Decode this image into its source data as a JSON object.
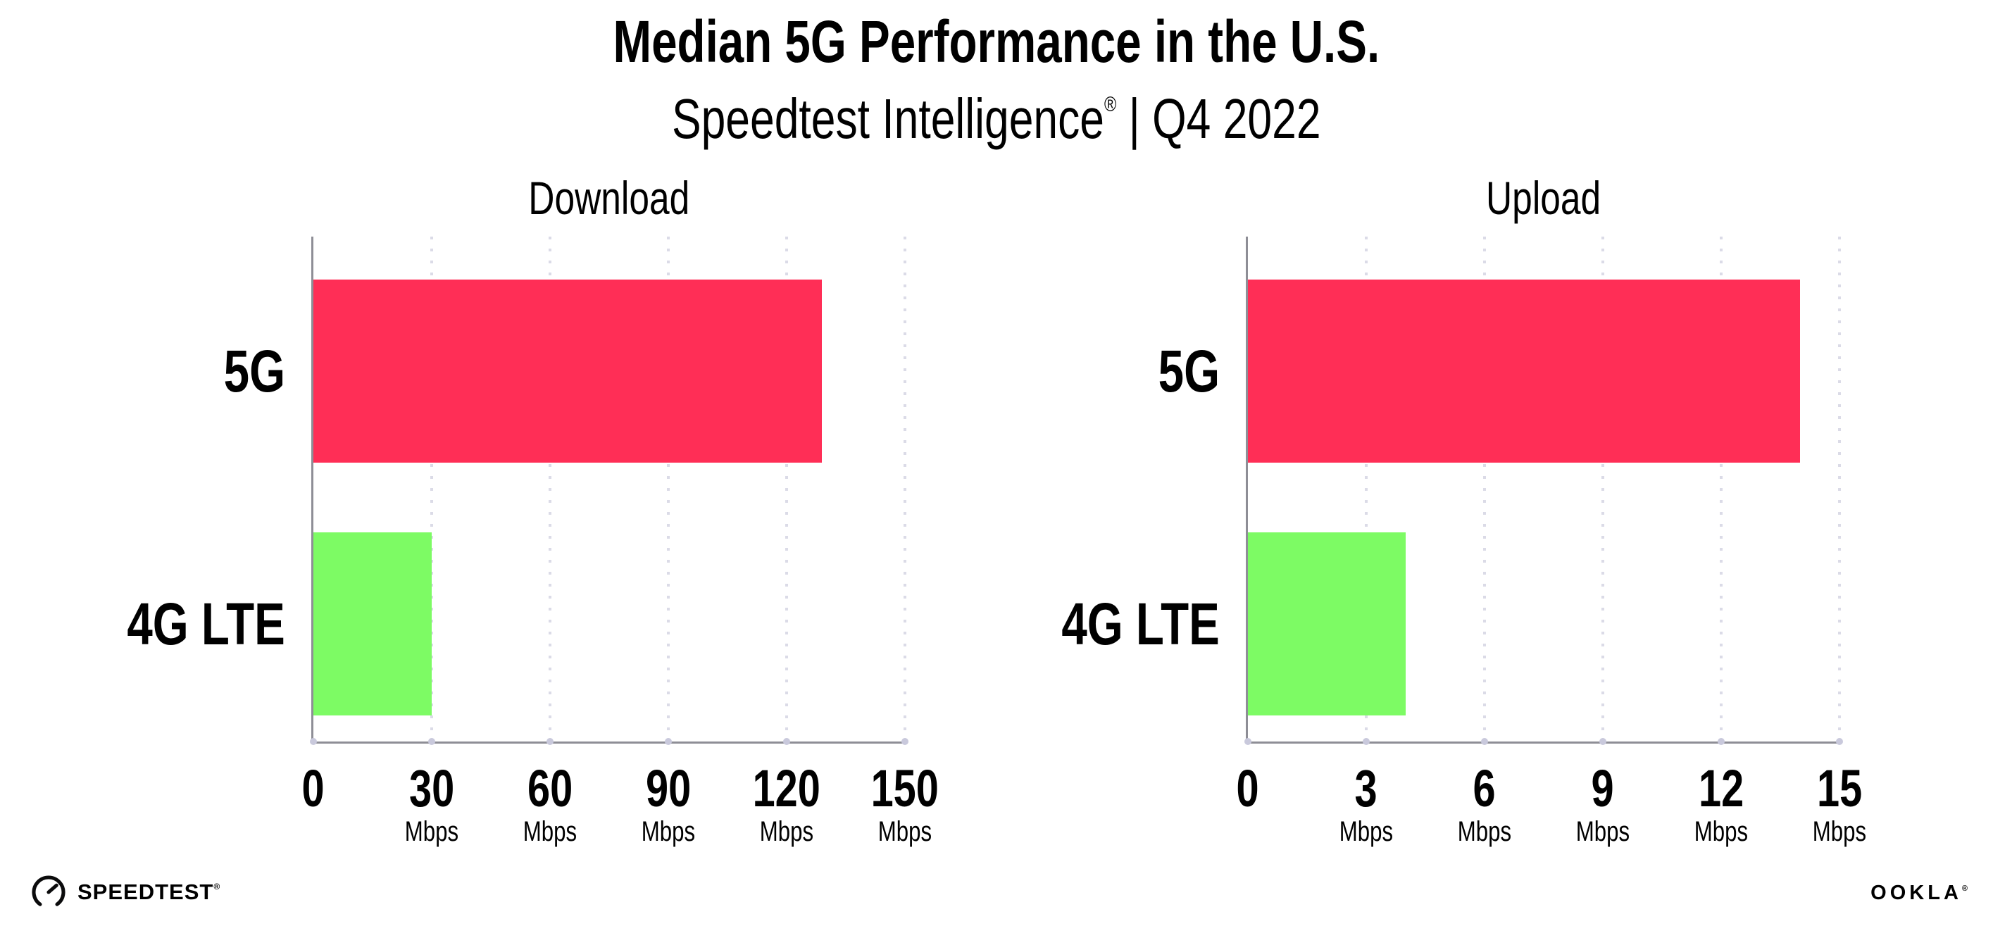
{
  "header": {
    "title": "Median 5G Performance in the U.S.",
    "subtitle_brand": "Speedtest Intelligence",
    "subtitle_reg": "®",
    "subtitle_divider": "|",
    "subtitle_period": "Q4 2022"
  },
  "chart_data": [
    {
      "type": "bar",
      "orientation": "horizontal",
      "title": "Download",
      "categories": [
        "5G",
        "4G LTE"
      ],
      "values": [
        129,
        30
      ],
      "unit": "Mbps",
      "xlim": [
        0,
        150
      ],
      "ticks": [
        0,
        30,
        60,
        90,
        120,
        150
      ],
      "grid": "dotted vertical gridlines at each tick",
      "legend": "none",
      "bar_colors": [
        "#FF2E56",
        "#7DFB64"
      ]
    },
    {
      "type": "bar",
      "orientation": "horizontal",
      "title": "Upload",
      "categories": [
        "5G",
        "4G LTE"
      ],
      "values": [
        14,
        4
      ],
      "unit": "Mbps",
      "xlim": [
        0,
        15
      ],
      "ticks": [
        0,
        3,
        6,
        9,
        12,
        15
      ],
      "grid": "dotted vertical gridlines at each tick",
      "legend": "none",
      "bar_colors": [
        "#FF2E56",
        "#7DFB64"
      ]
    }
  ],
  "colors": {
    "bar_5g": "#FF2E56",
    "bar_4g_lte": "#7DFB64",
    "axis": "#8E8E96",
    "gridline": "#DBDBE7",
    "tick_dot": "#C9C9DC",
    "text": "#000000",
    "background": "#FFFFFF"
  },
  "footer": {
    "speedtest_logo_text": "SPEEDTEST",
    "speedtest_reg": "®",
    "ookla_logo_text": "OOKLA",
    "ookla_reg": "®"
  }
}
